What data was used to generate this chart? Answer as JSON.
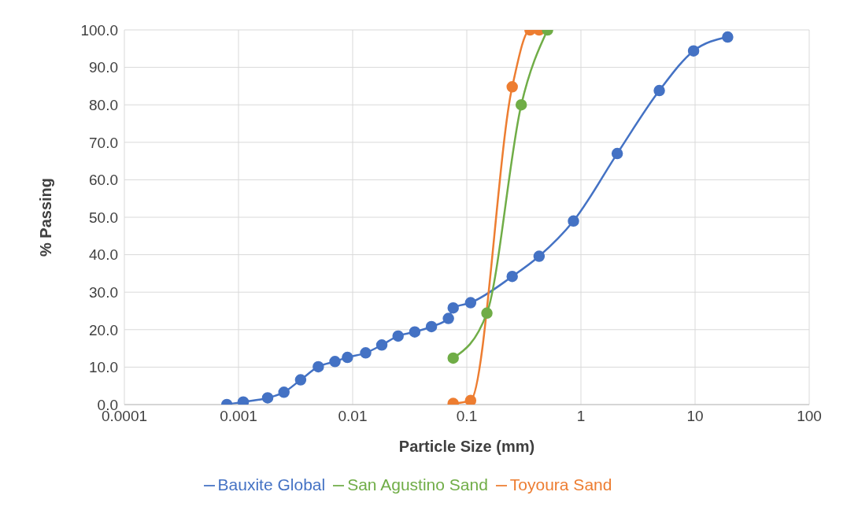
{
  "chart_data": {
    "type": "line",
    "xlabel": "Particle Size (mm)",
    "ylabel": "% Passing",
    "log": "x",
    "grid": true,
    "legend": "bottom",
    "marker": "circle",
    "line_style": "solid",
    "xlim": [
      0.0001,
      100
    ],
    "xticks": [
      {
        "value": 0.0001,
        "label": "0.0001"
      },
      {
        "value": 0.001,
        "label": "0.001"
      },
      {
        "value": 0.01,
        "label": "0.01"
      },
      {
        "value": 0.1,
        "label": "0.1"
      },
      1,
      10,
      100
    ],
    "ylim": [
      0,
      100
    ],
    "yticks": [
      {
        "value": 0,
        "label": "0.0"
      },
      {
        "value": 10,
        "label": "10.0"
      },
      {
        "value": 20,
        "label": "20.0"
      },
      {
        "value": 30,
        "label": "30.0"
      },
      {
        "value": 40,
        "label": "40.0"
      },
      {
        "value": 50,
        "label": "50.0"
      },
      {
        "value": 60,
        "label": "60.0"
      },
      {
        "value": 70,
        "label": "70.0"
      },
      {
        "value": 80,
        "label": "80.0"
      },
      {
        "value": 90,
        "label": "90.0"
      },
      {
        "value": 100,
        "label": "100.0"
      }
    ],
    "series": [
      {
        "name": "Bauxite Global",
        "color": "#4472c4",
        "x": [
          0.00079,
          0.0011,
          0.0018,
          0.0025,
          0.0035,
          0.005,
          0.007,
          0.009,
          0.013,
          0.018,
          0.025,
          0.035,
          0.049,
          0.069,
          0.076,
          0.108,
          0.25,
          0.43,
          0.86,
          2.08,
          4.86,
          9.7,
          19.3
        ],
        "values": [
          0,
          0.7,
          1.8,
          3.3,
          6.6,
          10.1,
          11.5,
          12.6,
          13.8,
          15.9,
          18.3,
          19.4,
          20.8,
          23,
          25.8,
          27.2,
          34.2,
          39.6,
          49,
          67,
          83.8,
          94.4,
          98.1
        ]
      },
      {
        "name": "Toyoura Sand",
        "color": "#ed7d31",
        "x": [
          0.076,
          0.108,
          0.25,
          0.358,
          0.43
        ],
        "values": [
          0.3,
          1.1,
          84.8,
          100,
          100
        ]
      },
      {
        "name": "San Agustino Sand",
        "color": "#70ad47",
        "x": [
          0.076,
          0.15,
          0.3,
          0.51
        ],
        "values": [
          12.4,
          24.4,
          80,
          100
        ]
      }
    ]
  }
}
